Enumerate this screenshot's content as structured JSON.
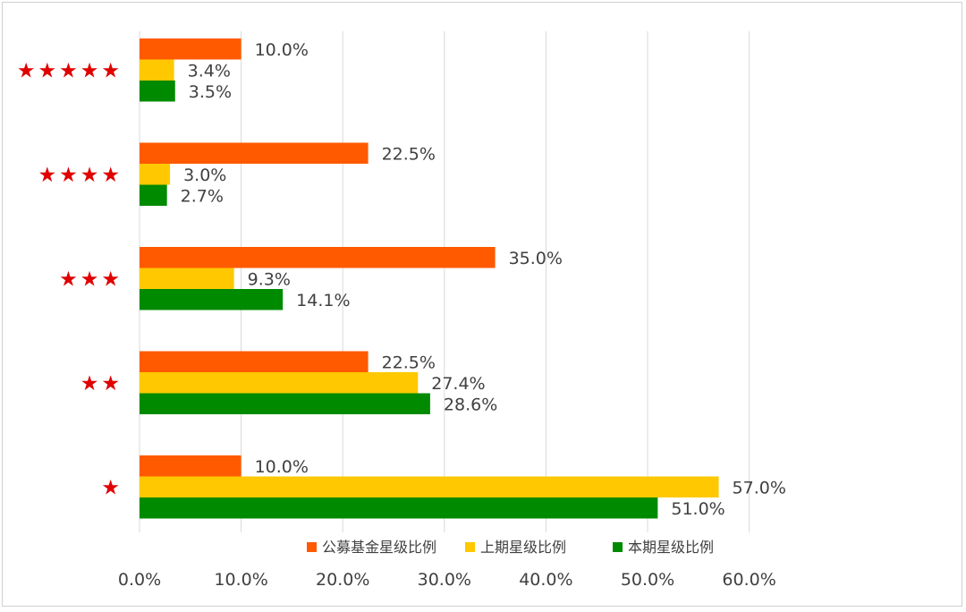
{
  "chart_data": {
    "type": "bar",
    "orientation": "horizontal",
    "categories": [
      "★★★★★",
      "★★★★",
      "★★★",
      "★★",
      "★"
    ],
    "series": [
      {
        "name": "公募基金星级比例",
        "color": "#FF5A00",
        "values": [
          10.0,
          22.5,
          35.0,
          22.5,
          10.0
        ],
        "labels": [
          "10.0%",
          "22.5%",
          "35.0%",
          "22.5%",
          "10.0%"
        ]
      },
      {
        "name": "上期星级比例",
        "color": "#FFC800",
        "values": [
          3.4,
          3.0,
          9.3,
          27.4,
          57.0
        ],
        "labels": [
          "3.4%",
          "3.0%",
          "9.3%",
          "27.4%",
          "57.0%"
        ]
      },
      {
        "name": "本期星级比例",
        "color": "#008A00",
        "values": [
          3.5,
          2.7,
          14.1,
          28.6,
          51.0
        ],
        "labels": [
          "3.5%",
          "2.7%",
          "14.1%",
          "28.6%",
          "51.0%"
        ]
      }
    ],
    "xlim": [
      0,
      60
    ],
    "xticks": [
      0,
      10,
      20,
      30,
      40,
      50,
      60
    ],
    "xtick_labels": [
      "0.0%",
      "10.0%",
      "20.0%",
      "30.0%",
      "40.0%",
      "50.0%",
      "60.0%"
    ],
    "grid": "vertical",
    "legend_position": "bottom-inside",
    "category_label_color": "#E00000"
  }
}
